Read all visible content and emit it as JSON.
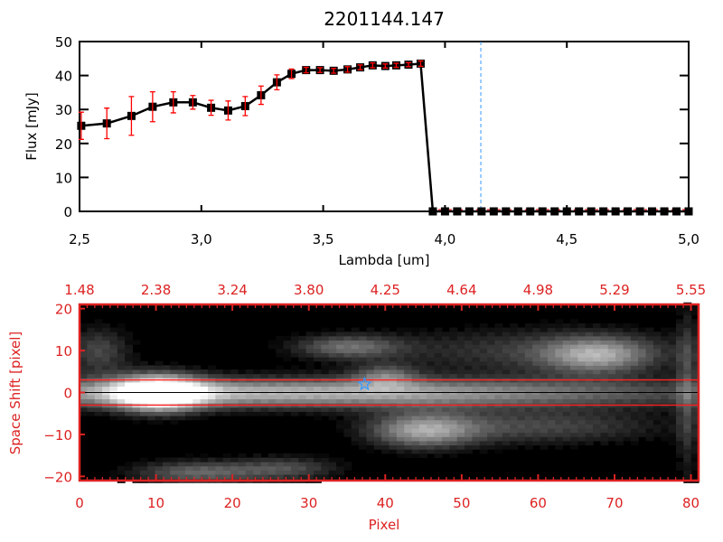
{
  "chart_data": [
    {
      "type": "line",
      "title": "2201144.147",
      "xlabel": "Lambda [um]",
      "ylabel": "Flux [mJy]",
      "xlim": [
        2.5,
        5.0
      ],
      "ylim": [
        0,
        50
      ],
      "xticks": [
        "2.5",
        "3.0",
        "3.5",
        "4.0",
        "4.5",
        "5.0"
      ],
      "yticks": [
        "0",
        "10",
        "20",
        "30",
        "40",
        "50"
      ],
      "x": [
        2.507,
        2.612,
        2.713,
        2.8,
        2.885,
        2.965,
        3.04,
        3.11,
        3.18,
        3.245,
        3.31,
        3.37,
        3.43,
        3.487,
        3.543,
        3.6,
        3.652,
        3.703,
        3.755,
        3.8,
        3.85,
        3.9,
        3.95,
        4.0,
        4.05,
        4.1,
        4.15,
        4.2,
        4.25,
        4.3,
        4.35,
        4.4,
        4.45,
        4.5,
        4.55,
        4.6,
        4.65,
        4.7,
        4.75,
        4.8,
        4.85,
        4.9,
        4.95,
        5.0
      ],
      "y": [
        25.2,
        25.9,
        28.1,
        30.8,
        32.1,
        32.1,
        30.5,
        29.7,
        31.0,
        34.2,
        38.0,
        40.5,
        41.6,
        41.6,
        41.4,
        41.8,
        42.4,
        43.0,
        42.8,
        43.0,
        43.2,
        43.5,
        0,
        0,
        0,
        0,
        0,
        0,
        0,
        0,
        0,
        0,
        0,
        0,
        0,
        0,
        0,
        0,
        0,
        0,
        0,
        0,
        0,
        0
      ],
      "yerr": [
        4,
        4.5,
        5.7,
        4.4,
        3.1,
        2,
        2.2,
        2.8,
        2.8,
        2.7,
        2.2,
        1.4,
        0.8,
        0.7,
        0.7,
        0.8,
        0.7,
        0.7,
        0.6,
        0.6,
        0.6,
        0.8,
        0,
        0,
        0,
        0,
        0,
        0,
        0,
        0,
        0,
        0,
        0,
        0,
        0,
        0,
        0,
        0,
        0,
        0,
        0,
        0,
        0,
        0
      ],
      "vline": 4.147,
      "colors": {
        "line": "#000000",
        "errorbar": "#ff0000",
        "vline": "#3399ff",
        "zero_line": "#ff0000"
      }
    },
    {
      "type": "heatmap",
      "xlabel": "Pixel",
      "ylabel": "Space Shift [pixel]",
      "xlim": [
        0,
        81
      ],
      "ylim": [
        -21,
        21
      ],
      "xticks": [
        "0",
        "10",
        "20",
        "30",
        "40",
        "50",
        "60",
        "70",
        "80"
      ],
      "yticks": [
        "-20",
        "-10",
        "0",
        "10",
        "20"
      ],
      "top_xticks": [
        "1.48",
        "2.38",
        "3.24",
        "3.80",
        "4.25",
        "4.64",
        "4.98",
        "5.29",
        "5.55"
      ],
      "hlines_red": [
        3,
        -3
      ],
      "hline_black": 0,
      "star": {
        "x": 37.3,
        "y": 2
      },
      "colors": {
        "axis": "#dd2222",
        "star": "#3399ff",
        "colormap": "grayscale"
      }
    }
  ]
}
